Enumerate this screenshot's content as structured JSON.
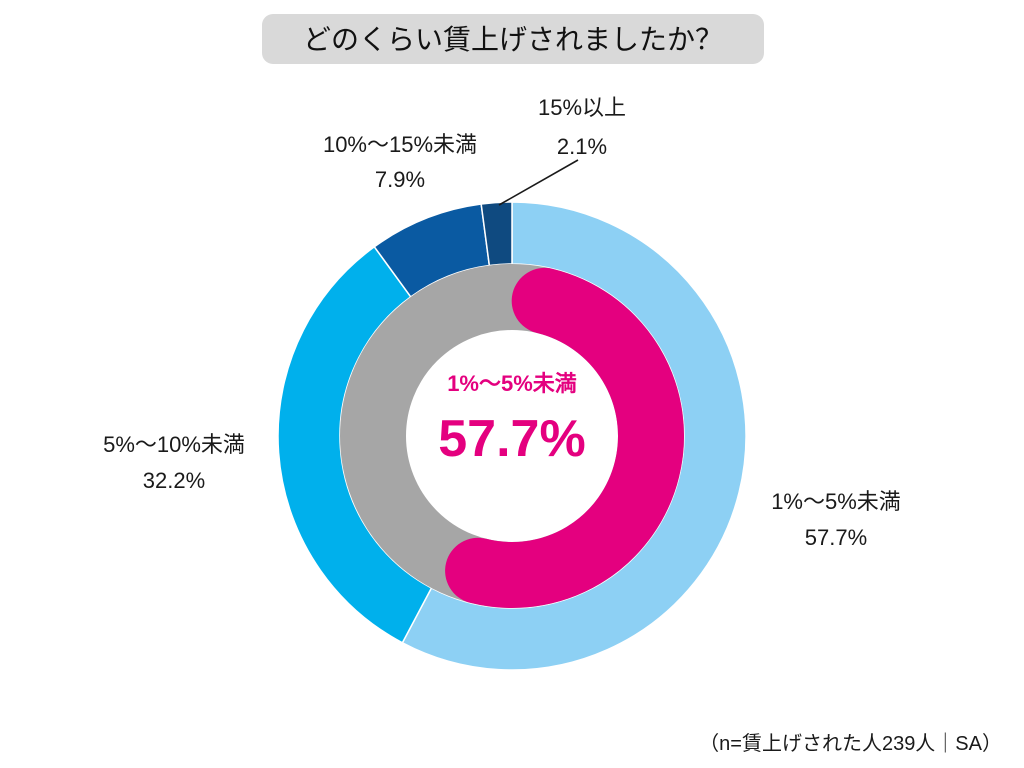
{
  "chart_data": {
    "type": "pie",
    "title": "どのくらい賃上げされましたか？",
    "categories": [
      "1%～5%未満",
      "5%～10%未満",
      "10%～15%未満",
      "15%以上"
    ],
    "values": [
      57.7,
      32.2,
      7.9,
      2.1
    ],
    "value_labels": [
      "57.7%",
      "32.2%",
      "7.9%",
      "2.1%"
    ],
    "colors": [
      "#8dd0f4",
      "#00b0ec",
      "#0a5aa2",
      "#0f4a80"
    ],
    "highlight": {
      "label": "1%〜5%未満",
      "value": 57.7,
      "value_text": "57.7%",
      "color": "#e4007f",
      "ring_color": "#a6a6a6"
    },
    "note": "（n=賃上げされた人239人｜SA）"
  },
  "style": {
    "title_box_color": "#d9d9d9",
    "separator_color": "#ffffff"
  }
}
